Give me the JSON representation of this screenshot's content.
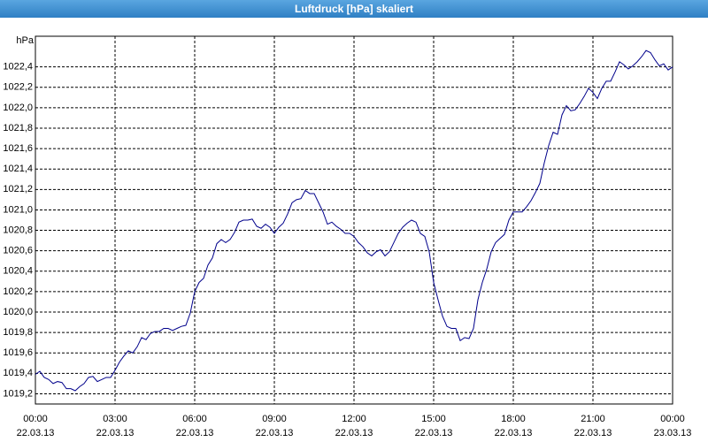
{
  "window_title": "Luftdruck [hPa] skaliert",
  "chart_data": {
    "type": "line",
    "y_unit": "hPa",
    "color": "#00008b",
    "grid": true,
    "xlim": [
      0,
      1440
    ],
    "ylim": [
      1019.1,
      1022.7
    ],
    "xticks": [
      {
        "value": 0,
        "label": "00:00"
      },
      {
        "value": 180,
        "label": "03:00"
      },
      {
        "value": 360,
        "label": "06:00"
      },
      {
        "value": 540,
        "label": "09:00"
      },
      {
        "value": 720,
        "label": "12:00"
      },
      {
        "value": 900,
        "label": "15:00"
      },
      {
        "value": 1080,
        "label": "18:00"
      },
      {
        "value": 1260,
        "label": "21:00"
      },
      {
        "value": 1440,
        "label": "00:00"
      }
    ],
    "xtick_dates": [
      "22.03.13",
      "22.03.13",
      "22.03.13",
      "22.03.13",
      "22.03.13",
      "22.03.13",
      "22.03.13",
      "22.03.13",
      "23.03.13"
    ],
    "yticks": [
      {
        "value": 1019.2,
        "label": "1019,2"
      },
      {
        "value": 1019.4,
        "label": "1019,4"
      },
      {
        "value": 1019.6,
        "label": "1019,6"
      },
      {
        "value": 1019.8,
        "label": "1019,8"
      },
      {
        "value": 1020.0,
        "label": "1020,0"
      },
      {
        "value": 1020.2,
        "label": "1020,2"
      },
      {
        "value": 1020.4,
        "label": "1020,4"
      },
      {
        "value": 1020.6,
        "label": "1020,6"
      },
      {
        "value": 1020.8,
        "label": "1020,8"
      },
      {
        "value": 1021.0,
        "label": "1021,0"
      },
      {
        "value": 1021.2,
        "label": "1021,2"
      },
      {
        "value": 1021.4,
        "label": "1021,4"
      },
      {
        "value": 1021.6,
        "label": "1021,6"
      },
      {
        "value": 1021.8,
        "label": "1021,8"
      },
      {
        "value": 1022.0,
        "label": "1022,0"
      },
      {
        "value": 1022.2,
        "label": "1022,2"
      },
      {
        "value": 1022.4,
        "label": "1022,4"
      }
    ],
    "x": [
      0,
      10,
      20,
      30,
      40,
      50,
      60,
      70,
      80,
      90,
      100,
      110,
      120,
      130,
      140,
      150,
      160,
      170,
      180,
      190,
      200,
      210,
      220,
      230,
      240,
      250,
      260,
      270,
      280,
      290,
      300,
      310,
      320,
      330,
      340,
      350,
      360,
      370,
      380,
      390,
      400,
      410,
      420,
      430,
      440,
      450,
      460,
      470,
      480,
      490,
      500,
      510,
      520,
      530,
      540,
      550,
      560,
      570,
      580,
      590,
      600,
      610,
      620,
      630,
      640,
      650,
      660,
      670,
      680,
      690,
      700,
      710,
      720,
      730,
      740,
      750,
      760,
      770,
      780,
      790,
      800,
      810,
      820,
      830,
      840,
      850,
      860,
      870,
      880,
      890,
      900,
      910,
      920,
      930,
      940,
      950,
      960,
      970,
      980,
      990,
      1000,
      1010,
      1020,
      1030,
      1040,
      1050,
      1060,
      1070,
      1080,
      1090,
      1100,
      1110,
      1120,
      1130,
      1140,
      1150,
      1160,
      1170,
      1180,
      1190,
      1200,
      1210,
      1220,
      1230,
      1240,
      1250,
      1260,
      1270,
      1280,
      1290,
      1300,
      1310,
      1320,
      1330,
      1340,
      1350,
      1360,
      1370,
      1380,
      1390,
      1400,
      1410,
      1420,
      1430,
      1440
    ],
    "values": [
      1019.39,
      1019.42,
      1019.36,
      1019.34,
      1019.3,
      1019.32,
      1019.31,
      1019.25,
      1019.25,
      1019.23,
      1019.27,
      1019.3,
      1019.36,
      1019.37,
      1019.32,
      1019.34,
      1019.36,
      1019.36,
      1019.43,
      1019.51,
      1019.57,
      1019.62,
      1019.6,
      1019.66,
      1019.75,
      1019.73,
      1019.79,
      1019.81,
      1019.81,
      1019.84,
      1019.84,
      1019.82,
      1019.84,
      1019.86,
      1019.87,
      1019.99,
      1020.2,
      1020.29,
      1020.33,
      1020.46,
      1020.53,
      1020.67,
      1020.71,
      1020.68,
      1020.71,
      1020.78,
      1020.88,
      1020.9,
      1020.9,
      1020.91,
      1020.84,
      1020.82,
      1020.86,
      1020.83,
      1020.77,
      1020.83,
      1020.87,
      1020.96,
      1021.07,
      1021.1,
      1021.11,
      1021.19,
      1021.16,
      1021.16,
      1021.07,
      1020.98,
      1020.86,
      1020.88,
      1020.84,
      1020.81,
      1020.77,
      1020.77,
      1020.74,
      1020.68,
      1020.64,
      1020.58,
      1020.55,
      1020.59,
      1020.61,
      1020.55,
      1020.59,
      1020.68,
      1020.77,
      1020.83,
      1020.87,
      1020.9,
      1020.88,
      1020.77,
      1020.74,
      1020.59,
      1020.29,
      1020.12,
      1019.96,
      1019.86,
      1019.84,
      1019.84,
      1019.72,
      1019.75,
      1019.74,
      1019.84,
      1020.12,
      1020.29,
      1020.42,
      1020.59,
      1020.68,
      1020.72,
      1020.76,
      1020.9,
      1020.98,
      1020.98,
      1020.98,
      1021.03,
      1021.09,
      1021.17,
      1021.26,
      1021.46,
      1021.63,
      1021.76,
      1021.74,
      1021.93,
      1022.02,
      1021.97,
      1021.98,
      1022.04,
      1022.11,
      1022.19,
      1022.15,
      1022.09,
      1022.19,
      1022.26,
      1022.26,
      1022.35,
      1022.45,
      1022.42,
      1022.38,
      1022.41,
      1022.45,
      1022.5,
      1022.56,
      1022.54,
      1022.47,
      1022.41,
      1022.43,
      1022.37,
      1022.4
    ]
  }
}
